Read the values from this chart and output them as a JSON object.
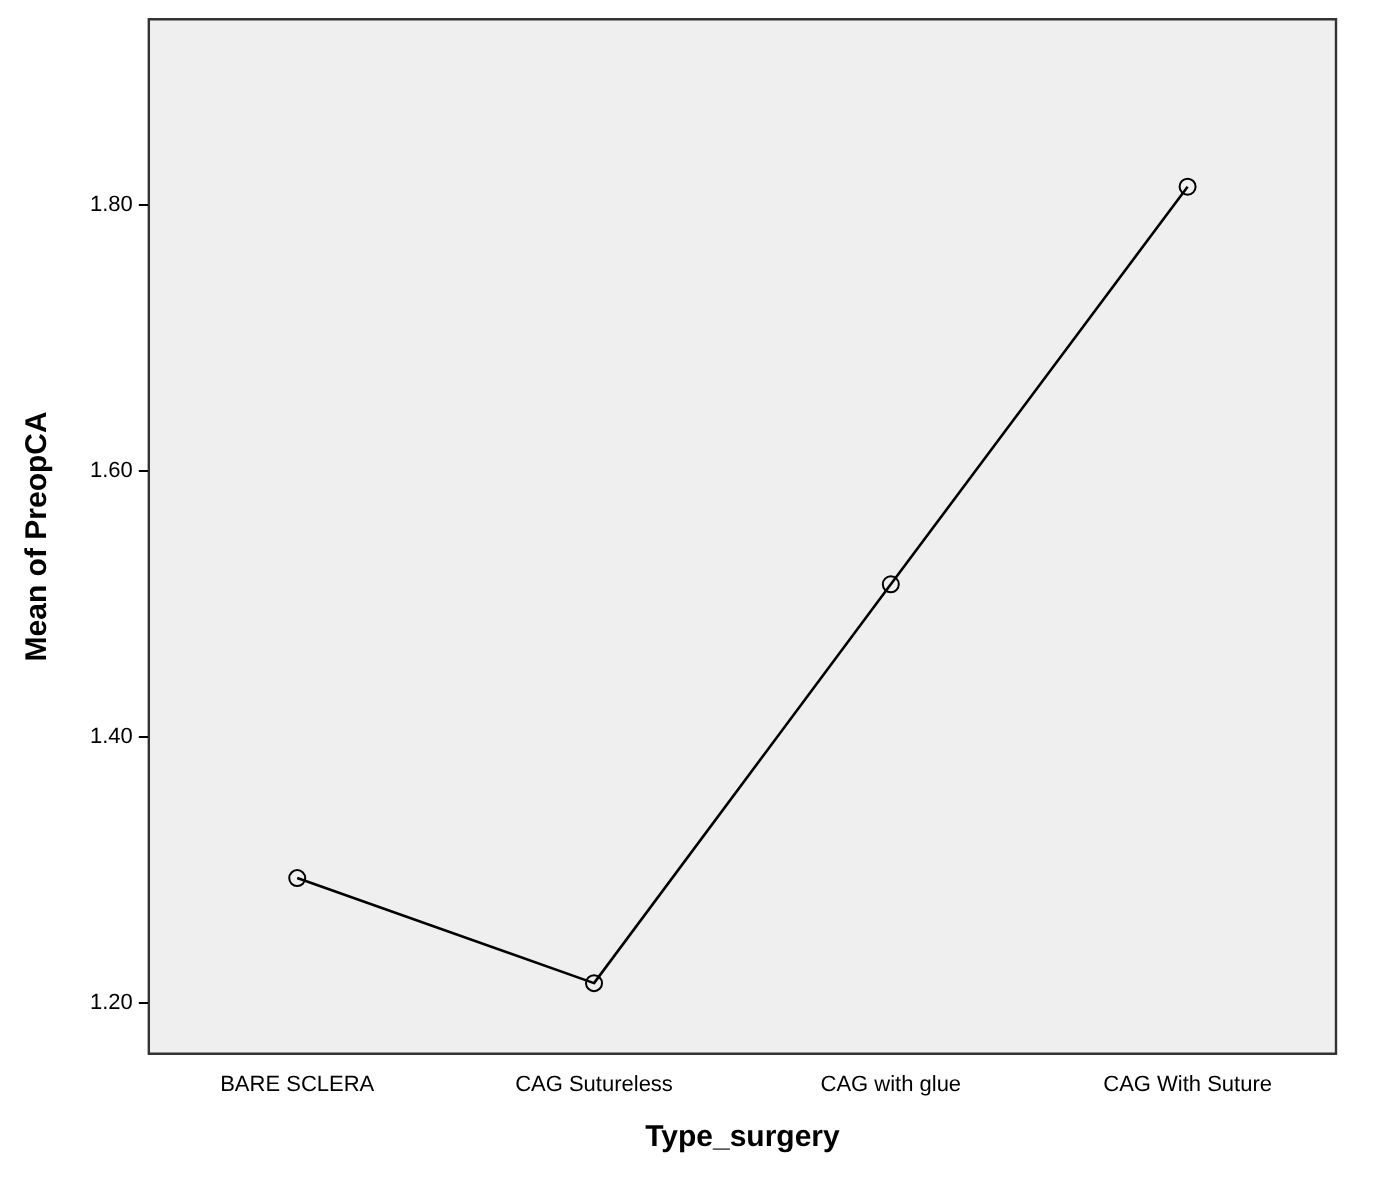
{
  "chart_data": {
    "type": "line",
    "xlabel": "Type_surgery",
    "ylabel": "Mean of PreopCA",
    "categories": [
      "BARE SCLERA",
      "CAG Sutureless",
      "CAG with glue",
      "CAG With Suture"
    ],
    "series": [
      {
        "color": "#000000",
        "values": [
          1.294,
          1.215,
          1.515,
          1.814
        ]
      }
    ],
    "ylim": [
      1.162,
      1.94
    ],
    "yticks": [
      {
        "value": 1.2,
        "label": "1.20"
      },
      {
        "value": 1.4,
        "label": "1.40"
      },
      {
        "value": 1.6,
        "label": "1.60"
      },
      {
        "value": 1.8,
        "label": "1.80"
      }
    ],
    "grid": false,
    "legend": false,
    "marker": "circle",
    "line_style": "solid"
  }
}
